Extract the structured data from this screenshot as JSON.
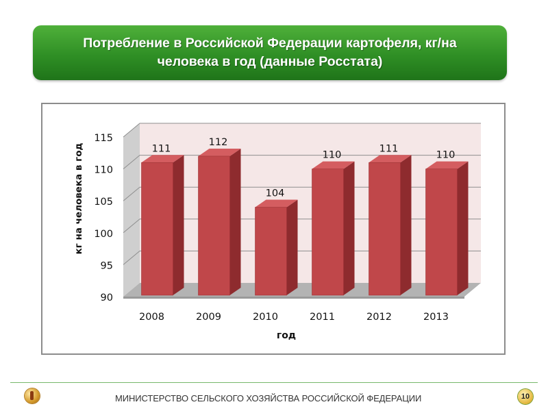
{
  "slide": {
    "title": "Потребление в Российской Федерации картофеля, кг/на человека в год (данные Росстата)",
    "footer_text": "МИНИСТЕРСТВО СЕЛЬСКОГО ХОЗЯЙСТВА РОССИЙСКОЙ ФЕДЕРАЦИИ",
    "page_number": "10",
    "logo_icon": "ministry-emblem-icon"
  },
  "colors": {
    "banner_green": "#2f8f25",
    "bar_front": "#c0474a",
    "bar_side": "#8e2b2e",
    "bar_top": "#d45d60",
    "back_wall": "#f5e7e7",
    "floor": "#b3b3b3"
  },
  "chart_data": {
    "type": "bar",
    "categories": [
      "2008",
      "2009",
      "2010",
      "2011",
      "2012",
      "2013"
    ],
    "values": [
      111,
      112,
      104,
      110,
      111,
      110
    ],
    "data_labels": [
      "111",
      "112",
      "104",
      "110",
      "111",
      "110"
    ],
    "title": "",
    "xlabel": "год",
    "ylabel": "кг на человека в год",
    "ylim": [
      90,
      115
    ],
    "yticks": [
      "90",
      "95",
      "100",
      "105",
      "110",
      "115"
    ],
    "grid": true,
    "legend": "none",
    "style": "3d-column"
  }
}
